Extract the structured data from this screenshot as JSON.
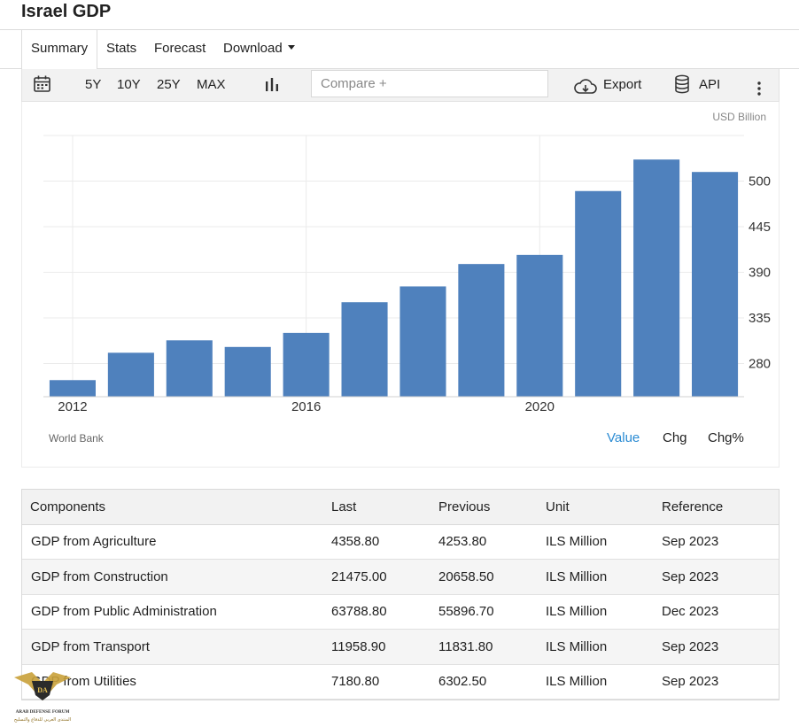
{
  "page": {
    "title": "Israel GDP"
  },
  "tabs": [
    {
      "label": "Summary"
    },
    {
      "label": "Stats"
    },
    {
      "label": "Forecast"
    },
    {
      "label": "Download"
    }
  ],
  "toolbar": {
    "ranges": [
      "5Y",
      "10Y",
      "25Y",
      "MAX"
    ],
    "compare_placeholder": "Compare +",
    "export_label": "Export",
    "api_label": "API"
  },
  "chart": {
    "unit_label": "USD Billion",
    "source": "World Bank",
    "modes": [
      "Value",
      "Chg",
      "Chg%"
    ],
    "active_mode": "Value",
    "bar_color": "#4f81bd",
    "active_color": "#2a8bd3"
  },
  "chart_data": {
    "type": "bar",
    "title": "",
    "xlabel": "",
    "ylabel": "USD Billion",
    "categories": [
      "2012",
      "2013",
      "2014",
      "2015",
      "2016",
      "2017",
      "2018",
      "2019",
      "2020",
      "2021",
      "2022",
      "2023"
    ],
    "values": [
      260,
      293,
      308,
      300,
      317,
      354,
      373,
      400,
      411,
      488,
      526,
      511
    ],
    "x_tick_labels": [
      "2012",
      "2016",
      "2020"
    ],
    "y_ticks": [
      280,
      335,
      390,
      445,
      500
    ],
    "ylim": [
      240,
      555
    ],
    "grid": true,
    "y_axis_side": "right"
  },
  "table": {
    "headers": [
      "Components",
      "Last",
      "Previous",
      "Unit",
      "Reference"
    ],
    "rows": [
      [
        "GDP from Agriculture",
        "4358.80",
        "4253.80",
        "ILS Million",
        "Sep 2023"
      ],
      [
        "GDP from Construction",
        "21475.00",
        "20658.50",
        "ILS Million",
        "Sep 2023"
      ],
      [
        "GDP from Public Administration",
        "63788.80",
        "55896.70",
        "ILS Million",
        "Dec 2023"
      ],
      [
        "GDP from Transport",
        "11958.90",
        "11831.80",
        "ILS Million",
        "Sep 2023"
      ],
      [
        "GDP from Utilities",
        "7180.80",
        "6302.50",
        "ILS Million",
        "Sep 2023"
      ]
    ]
  },
  "watermark": {
    "monogram": "DA",
    "line1": "ARAB DEFENSE FORUM",
    "line2": "المنتدى العربي للدفاع والتسليح"
  }
}
